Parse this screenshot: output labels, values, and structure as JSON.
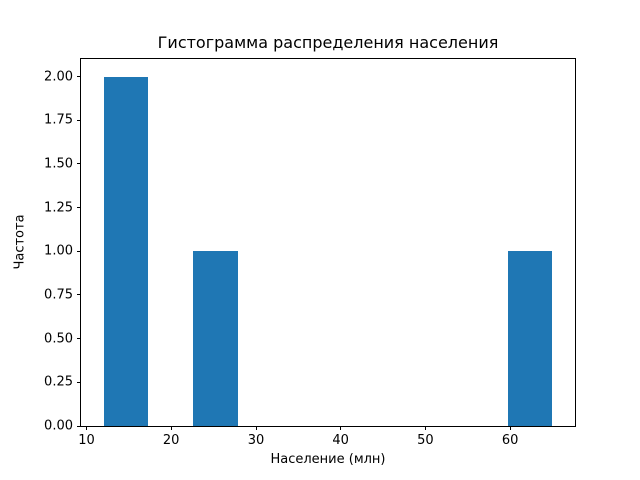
{
  "chart_data": {
    "type": "bar",
    "subtype": "histogram",
    "title": "Гистограмма распределения населения",
    "xlabel": "Население (млн)",
    "ylabel": "Частота",
    "bin_edges": [
      12,
      17.3,
      22.6,
      27.9,
      33.2,
      38.5,
      43.8,
      49.1,
      54.4,
      59.7,
      65
    ],
    "counts": [
      2,
      0,
      1,
      0,
      0,
      0,
      0,
      0,
      0,
      1
    ],
    "xlim": [
      9.35,
      67.65
    ],
    "ylim": [
      0,
      2.1
    ],
    "xticks": [
      10,
      20,
      30,
      40,
      50,
      60
    ],
    "yticks": [
      0.0,
      0.25,
      0.5,
      0.75,
      1.0,
      1.25,
      1.5,
      1.75,
      2.0
    ],
    "bar_color": "#1f77b4",
    "grid": false,
    "legend": null
  }
}
